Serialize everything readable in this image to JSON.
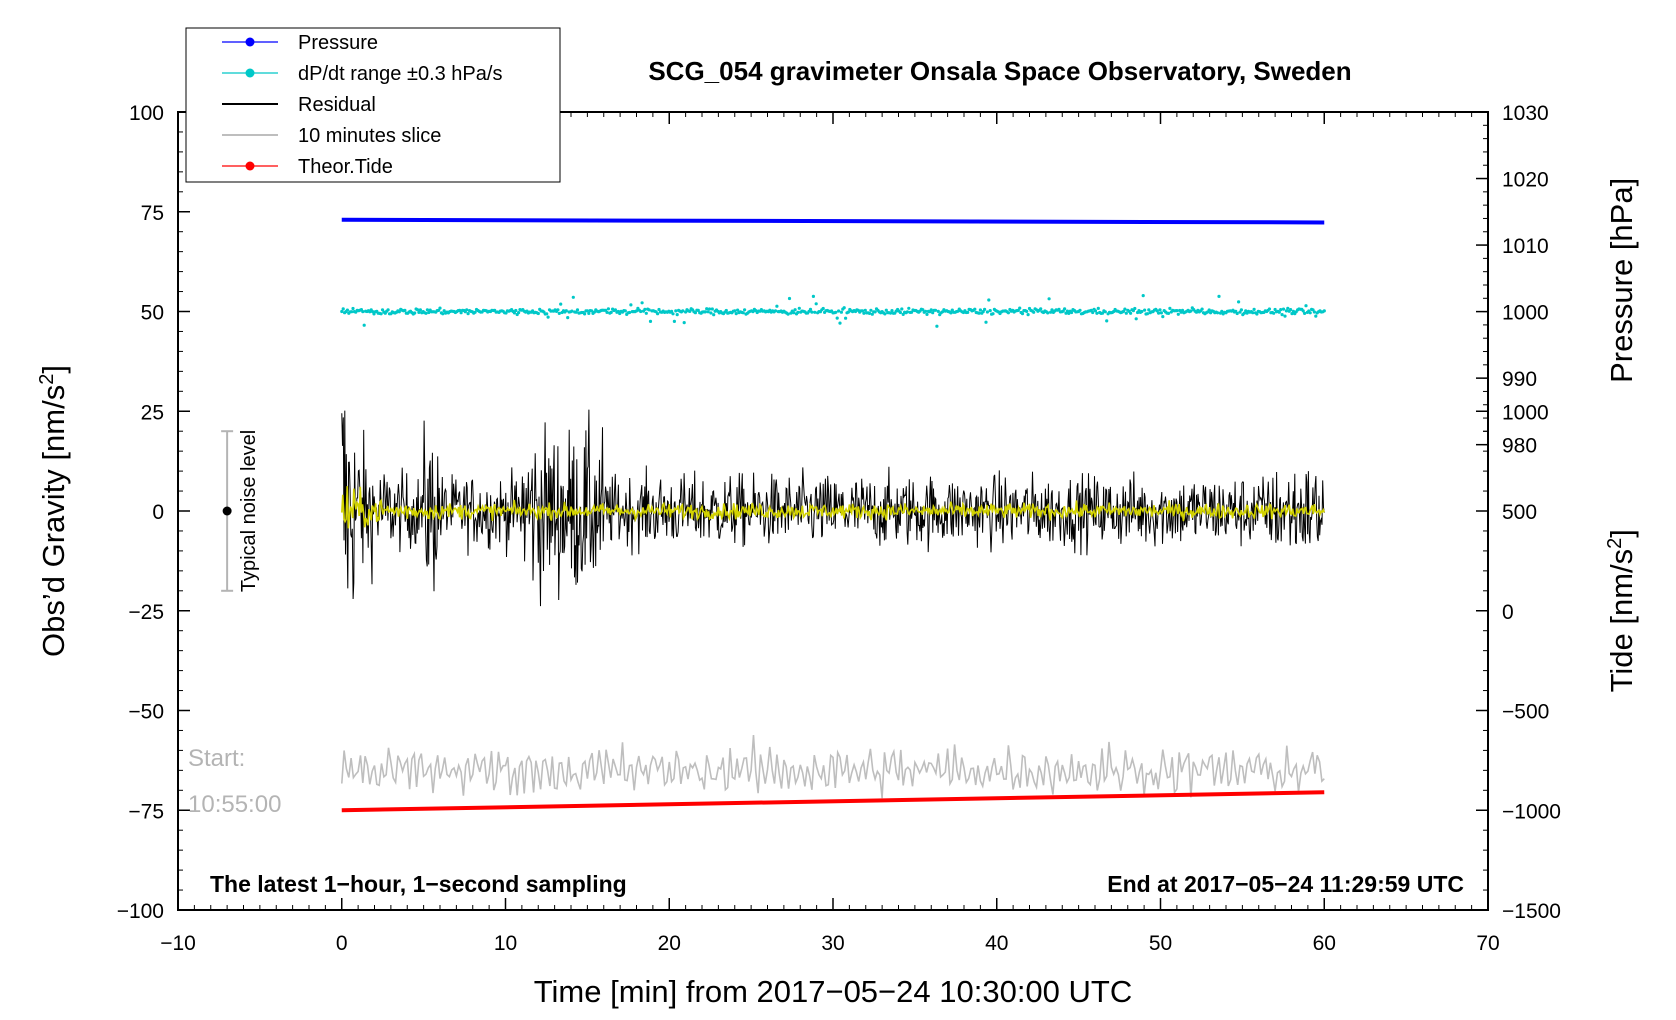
{
  "chart_data": {
    "type": "line",
    "title": "SCG_054 gravimeter Onsala Space Observatory, Sweden",
    "xlabel": "Time [min] from 2017−05−24 10:30:00 UTC",
    "ylabel_left": "Obs’d Gravity [nm/s²]",
    "ylabel_right_top": "Pressure [hPa]",
    "ylabel_right_bottom": "Tide [nm/s²]",
    "xlim": [
      -10,
      70
    ],
    "ylim_left": [
      -100,
      100
    ],
    "xticks": [
      -10,
      0,
      10,
      20,
      30,
      40,
      50,
      60,
      70
    ],
    "xtick_labels": [
      "−10",
      "0",
      "10",
      "20",
      "30",
      "40",
      "50",
      "60",
      "70"
    ],
    "yticks_left": [
      100,
      75,
      50,
      25,
      0,
      -25,
      -50,
      -75,
      -100
    ],
    "ytick_labels_left": [
      "100",
      "75",
      "50",
      "25",
      "0",
      "−25",
      "−50",
      "−75",
      "−100"
    ],
    "pressure_axis": {
      "ticks": [
        1030,
        1020,
        1010,
        1000,
        990,
        980
      ],
      "tick_labels": [
        "1030",
        "1020",
        "1010",
        "1000",
        "990",
        "980"
      ],
      "range": [
        980,
        1030
      ]
    },
    "tide_axis": {
      "ticks": [
        1000,
        500,
        0,
        -500,
        -1000,
        -1500
      ],
      "tick_labels": [
        "1000",
        "500",
        "0",
        "−500",
        "−1000",
        "−1500"
      ],
      "range": [
        -1500,
        1000
      ]
    },
    "legend_placement": "top-left",
    "grid": false,
    "series": [
      {
        "name": "Pressure",
        "color": "#0000ff",
        "axis": "pressure",
        "x": [
          0,
          60
        ],
        "values": [
          1013.8,
          1013.4
        ]
      },
      {
        "name": "dP/dt range ±0.3 hPa/s",
        "color": "#00c8c8",
        "axis": "left",
        "x": [
          0,
          60
        ],
        "center": 50
      },
      {
        "name": "Residual",
        "color": "#000000",
        "axis": "left",
        "x": [
          0,
          60
        ],
        "center": 0
      },
      {
        "name": "10 minutes slice",
        "color": "#bebebe",
        "axis": "left",
        "x": [
          0,
          60
        ],
        "center": -65
      },
      {
        "name": "Theor.Tide",
        "color": "#ff0000",
        "axis": "tide",
        "x": [
          0,
          60
        ],
        "values": [
          -1000,
          -910
        ]
      }
    ],
    "filtered_residual_color": "#d2d200",
    "noise_level": {
      "label": "Typical noise level",
      "x": -7,
      "center": 0,
      "half_range": 20
    },
    "annotations": {
      "left": "The latest 1−hour, 1−second sampling",
      "right": "End at 2017−05−24 11:29:59 UTC",
      "start_line1": "Start:",
      "start_line2": "10:55:00"
    }
  }
}
